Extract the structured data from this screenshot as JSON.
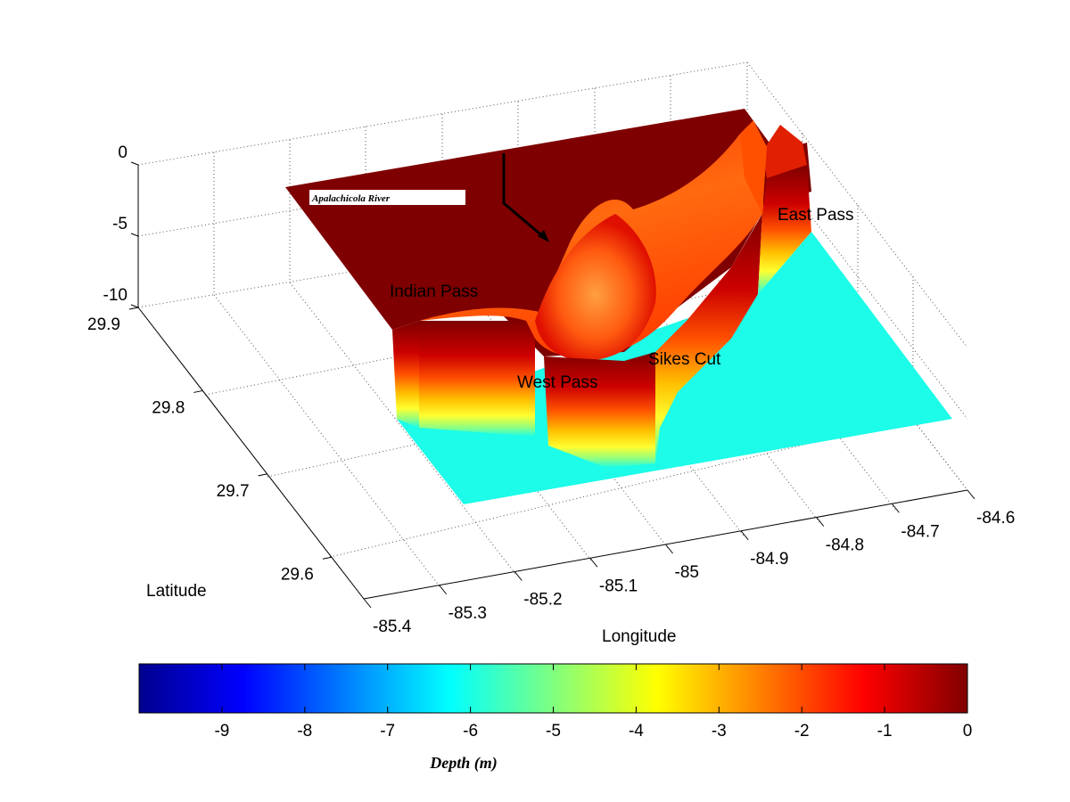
{
  "chart_data": {
    "type": "surface3d",
    "title": "",
    "xlabel": "Longitude",
    "ylabel": "Latitude",
    "zlabel": "",
    "x_ticks": [
      "-85.4",
      "-85.3",
      "-85.2",
      "-85.1",
      "-85",
      "-84.9",
      "-84.8",
      "-84.7",
      "-84.6"
    ],
    "y_ticks": [
      "29.6",
      "29.7",
      "29.8",
      "29.9"
    ],
    "z_ticks": [
      "-10",
      "-5",
      "0"
    ],
    "xlim": [
      -85.4,
      -84.6
    ],
    "ylim": [
      29.55,
      29.9
    ],
    "zlim": [
      -10,
      0
    ],
    "grid": true,
    "colormap": "jet",
    "colorbar": {
      "label": "Depth (m)",
      "ticks": [
        "-9",
        "-8",
        "-7",
        "-6",
        "-5",
        "-4",
        "-3",
        "-2",
        "-1",
        "0"
      ],
      "range": [
        -10,
        0
      ],
      "placement": "bottom"
    },
    "annotations": [
      "Apalachicola River",
      "East Pass",
      "Indian Pass",
      "West Pass",
      "Sikes Cut"
    ],
    "colors": {
      "land": "#7f0000",
      "deep_water": "#1cfce8"
    }
  }
}
